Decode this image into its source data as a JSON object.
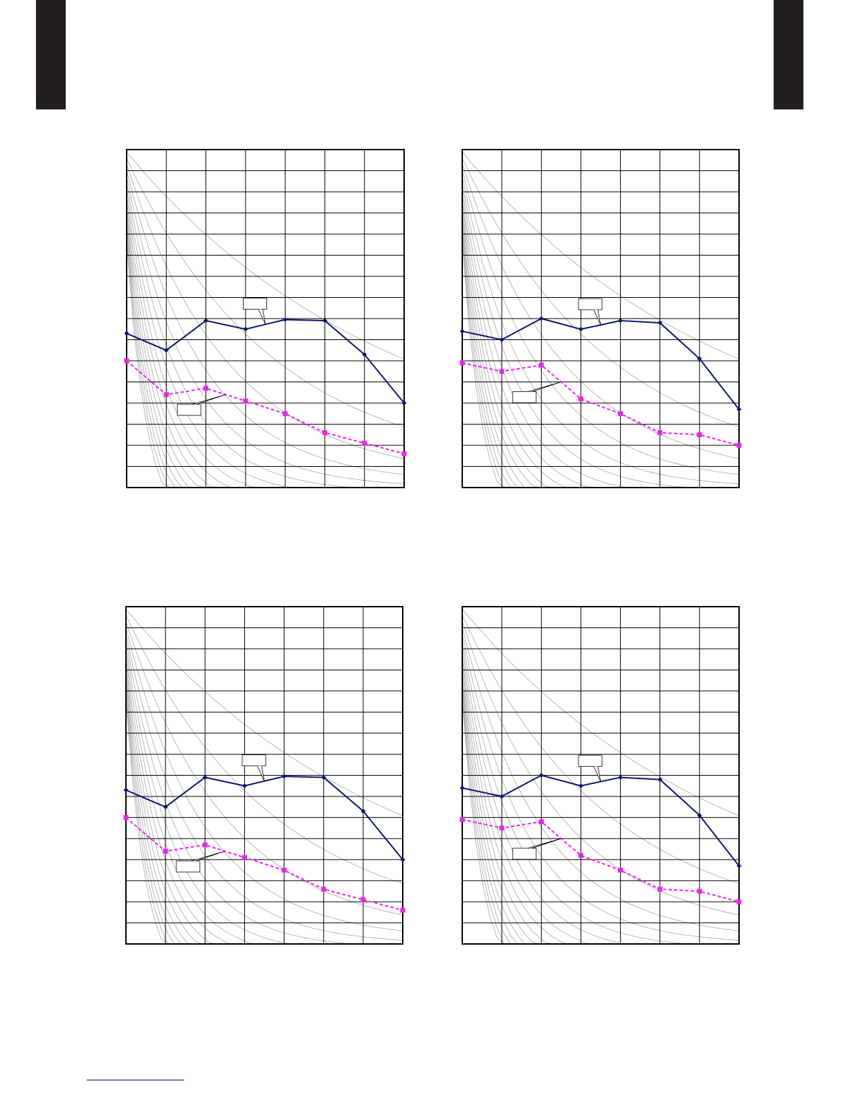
{
  "page": {
    "colors": {
      "tab": "#231f20",
      "footer_rule": "#0000cc"
    }
  },
  "styles": {
    "frame": "#000000",
    "grid": "#000000",
    "curve": "#9a9a9a",
    "series_colors": [
      "#0a1474",
      "#ee22ee"
    ],
    "series_markers": [
      "diamond",
      "square"
    ],
    "series_dash": [
      "",
      "5,3"
    ]
  },
  "chart_data": [
    {
      "type": "line",
      "title": "",
      "xlabel": "",
      "ylabel": "",
      "x": [
        0,
        1,
        2,
        3,
        4,
        5,
        6,
        7
      ],
      "xlim": [
        0,
        7
      ],
      "ylim": [
        0,
        16
      ],
      "grid": true,
      "legend": "none",
      "series": [
        {
          "values": [
            7.3,
            6.5,
            7.9,
            7.5,
            7.95,
            7.9,
            6.3,
            4.0
          ]
        },
        {
          "values": [
            6.0,
            4.4,
            4.7,
            4.1,
            3.5,
            2.6,
            2.1,
            1.6
          ]
        }
      ],
      "callouts": [
        {
          "series": 0,
          "text": ""
        },
        {
          "series": 1,
          "text": ""
        }
      ]
    },
    {
      "type": "line",
      "title": "",
      "xlabel": "",
      "ylabel": "",
      "x": [
        0,
        1,
        2,
        3,
        4,
        5,
        6,
        7
      ],
      "xlim": [
        0,
        7
      ],
      "ylim": [
        0,
        16
      ],
      "grid": true,
      "legend": "none",
      "series": [
        {
          "values": [
            7.4,
            7.0,
            8.0,
            7.5,
            7.9,
            7.8,
            6.1,
            3.7
          ]
        },
        {
          "values": [
            5.9,
            5.5,
            5.8,
            4.2,
            3.5,
            2.6,
            2.5,
            2.0
          ]
        }
      ],
      "callouts": [
        {
          "series": 0,
          "text": ""
        },
        {
          "series": 1,
          "text": ""
        }
      ]
    },
    {
      "type": "line",
      "title": "",
      "xlabel": "",
      "ylabel": "",
      "x": [
        0,
        1,
        2,
        3,
        4,
        5,
        6,
        7
      ],
      "xlim": [
        0,
        7
      ],
      "ylim": [
        0,
        16
      ],
      "grid": true,
      "legend": "none",
      "series": [
        {
          "values": [
            7.3,
            6.5,
            7.9,
            7.5,
            7.95,
            7.9,
            6.3,
            4.0
          ]
        },
        {
          "values": [
            6.0,
            4.4,
            4.7,
            4.1,
            3.5,
            2.6,
            2.1,
            1.6
          ]
        }
      ],
      "callouts": [
        {
          "series": 0,
          "text": ""
        },
        {
          "series": 1,
          "text": ""
        }
      ]
    },
    {
      "type": "line",
      "title": "",
      "xlabel": "",
      "ylabel": "",
      "x": [
        0,
        1,
        2,
        3,
        4,
        5,
        6,
        7
      ],
      "xlim": [
        0,
        7
      ],
      "ylim": [
        0,
        16
      ],
      "grid": true,
      "legend": "none",
      "series": [
        {
          "values": [
            7.4,
            7.0,
            8.0,
            7.5,
            7.9,
            7.8,
            6.1,
            3.7
          ]
        },
        {
          "values": [
            5.9,
            5.5,
            5.8,
            4.2,
            3.5,
            2.6,
            2.5,
            2.0
          ]
        }
      ],
      "callouts": [
        {
          "series": 0,
          "text": ""
        },
        {
          "series": 1,
          "text": ""
        }
      ]
    }
  ]
}
